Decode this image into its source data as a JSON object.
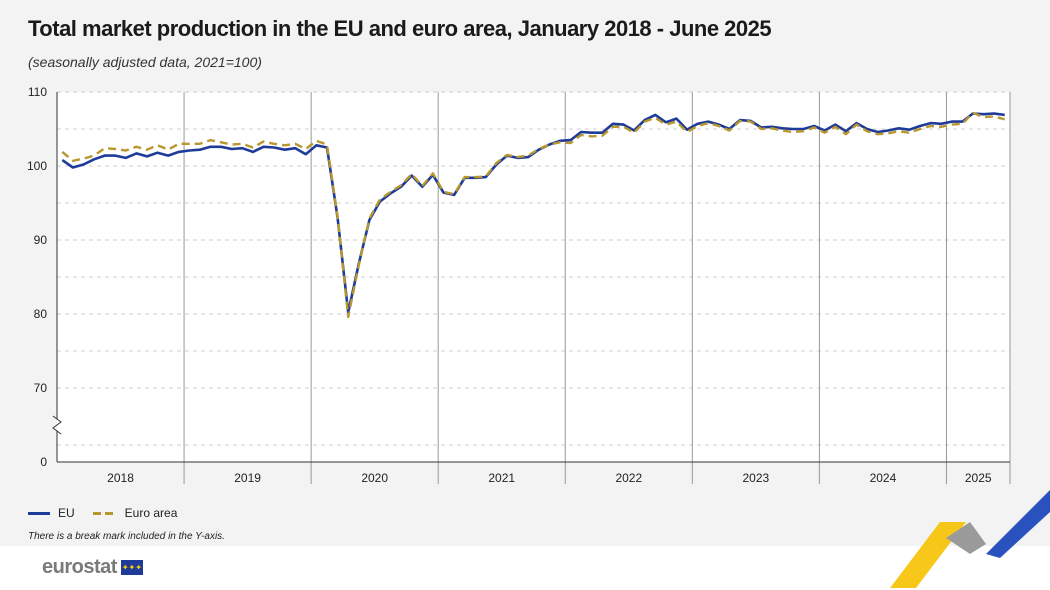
{
  "header": {
    "title": "Total market production in the EU and euro area, January 2018 - June 2025",
    "subtitle": "(seasonally adjusted data, 2021=100)"
  },
  "legend": {
    "eu_label": "EU",
    "ea_label": "Euro area"
  },
  "footnote": "There is a break mark included in the Y-axis.",
  "brand": {
    "logo_text": "eurostat"
  },
  "colors": {
    "eu": "#1f3b9a",
    "euro_area": "#b8982e",
    "accent_yellow": "#f6c200",
    "accent_blue": "#2a52be"
  },
  "chart_data": {
    "type": "line",
    "y_ticks": [
      "110",
      "100",
      "90",
      "80",
      "70",
      "0"
    ],
    "ylim": [
      70,
      110
    ],
    "y_axis_break": true,
    "grid": "horizontal dashed",
    "x_start": "2018-01",
    "years": [
      "2018",
      "2019",
      "2020",
      "2021",
      "2022",
      "2023",
      "2024",
      "2025"
    ],
    "series": [
      {
        "name": "EU",
        "style": "solid",
        "values": [
          100.8,
          99.8,
          100.2,
          100.9,
          101.4,
          101.4,
          101.1,
          101.7,
          101.3,
          101.8,
          101.4,
          101.9,
          102.1,
          102.2,
          102.6,
          102.6,
          102.3,
          102.4,
          101.9,
          102.6,
          102.5,
          102.2,
          102.4,
          101.6,
          102.8,
          102.5,
          93.0,
          80.2,
          86.8,
          92.7,
          95.2,
          96.3,
          97.2,
          98.7,
          97.2,
          98.8,
          96.4,
          96.1,
          98.4,
          98.4,
          98.5,
          100.2,
          101.4,
          101.1,
          101.2,
          102.2,
          102.9,
          103.4,
          103.5,
          104.6,
          104.5,
          104.5,
          105.7,
          105.6,
          104.8,
          106.2,
          106.9,
          105.9,
          106.4,
          104.9,
          105.7,
          106.0,
          105.6,
          105.0,
          106.2,
          106.1,
          105.2,
          105.3,
          105.1,
          105.0,
          105.0,
          105.4,
          104.8,
          105.6,
          104.7,
          105.8,
          105.0,
          104.6,
          104.8,
          105.1,
          104.9,
          105.4,
          105.8,
          105.7,
          106.0,
          106.0,
          107.1,
          107.0,
          107.1,
          106.9
        ]
      },
      {
        "name": "Euro area",
        "style": "dashed",
        "values": [
          101.9,
          100.7,
          101.0,
          101.4,
          102.4,
          102.3,
          102.1,
          102.6,
          102.2,
          102.8,
          102.2,
          103.0,
          103.0,
          103.0,
          103.5,
          103.2,
          102.9,
          103.0,
          102.5,
          103.3,
          103.0,
          102.8,
          103.0,
          102.3,
          103.4,
          102.9,
          93.1,
          79.6,
          86.6,
          92.9,
          95.5,
          96.5,
          97.4,
          98.9,
          97.3,
          99.0,
          96.5,
          96.2,
          98.5,
          98.5,
          98.6,
          100.4,
          101.5,
          101.2,
          101.4,
          102.3,
          102.9,
          103.2,
          103.1,
          104.2,
          104.0,
          104.1,
          105.3,
          105.3,
          104.5,
          106.0,
          106.5,
          105.6,
          106.0,
          104.6,
          105.4,
          105.8,
          105.4,
          104.8,
          106.1,
          106.0,
          105.0,
          105.1,
          104.8,
          104.6,
          104.7,
          105.2,
          104.5,
          105.3,
          104.3,
          105.6,
          104.7,
          104.3,
          104.4,
          104.7,
          104.5,
          105.0,
          105.4,
          105.3,
          105.6,
          105.7,
          107.2,
          106.6,
          106.7,
          106.3
        ]
      }
    ]
  }
}
